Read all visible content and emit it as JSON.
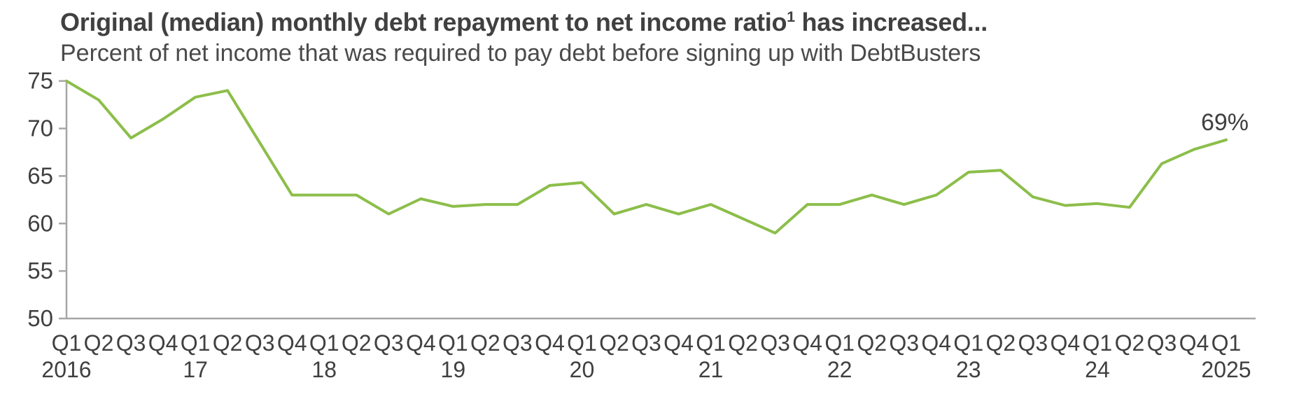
{
  "header": {
    "title_main": "Original (median) monthly debt repayment to net income ratio",
    "title_footnote_marker": "1",
    "title_suffix": " has increased...",
    "subtitle": "Percent of net income that was required to pay debt before signing up with DebtBusters"
  },
  "colors": {
    "line": "#8cbe4a",
    "axis": "#a6a6a6",
    "text": "#404040",
    "subtitle_text": "#4a4a4a"
  },
  "chart_data": {
    "type": "line",
    "title": "Original (median) monthly debt repayment to net income ratio has increased...",
    "subtitle": "Percent of net income that was required to pay debt before signing up with DebtBusters",
    "xlabel": "",
    "ylabel": "",
    "ylim": [
      50,
      75
    ],
    "yticks": [
      50,
      55,
      60,
      65,
      70,
      75
    ],
    "grid": false,
    "legend_position": "none",
    "x_quarter_labels": [
      "Q1",
      "Q2",
      "Q3",
      "Q4",
      "Q1",
      "Q2",
      "Q3",
      "Q4",
      "Q1",
      "Q2",
      "Q3",
      "Q4",
      "Q1",
      "Q2",
      "Q3",
      "Q4",
      "Q1",
      "Q2",
      "Q3",
      "Q4",
      "Q1",
      "Q2",
      "Q3",
      "Q4",
      "Q1",
      "Q2",
      "Q3",
      "Q4",
      "Q1",
      "Q2",
      "Q3",
      "Q4",
      "Q1",
      "Q2",
      "Q3",
      "Q4",
      "Q1"
    ],
    "x_year_labels": [
      {
        "index": 0,
        "label": "2016"
      },
      {
        "index": 4,
        "label": "17"
      },
      {
        "index": 8,
        "label": "18"
      },
      {
        "index": 12,
        "label": "19"
      },
      {
        "index": 16,
        "label": "20"
      },
      {
        "index": 20,
        "label": "21"
      },
      {
        "index": 24,
        "label": "22"
      },
      {
        "index": 28,
        "label": "23"
      },
      {
        "index": 32,
        "label": "24"
      },
      {
        "index": 36,
        "label": "2025"
      }
    ],
    "series": [
      {
        "name": "Original (median) monthly debt repayment to net income ratio (%)",
        "values": [
          75,
          73,
          69,
          71,
          73.3,
          74,
          68.5,
          63,
          63,
          63,
          61,
          62.6,
          61.8,
          62,
          62,
          64,
          64.3,
          61,
          62,
          61,
          62,
          60.5,
          59,
          62,
          62,
          63,
          62,
          63,
          65.4,
          65.6,
          62.8,
          61.9,
          62.1,
          61.7,
          66.3,
          67.8,
          68.8
        ]
      }
    ],
    "annotation": {
      "text": "69%",
      "index": 36
    }
  }
}
